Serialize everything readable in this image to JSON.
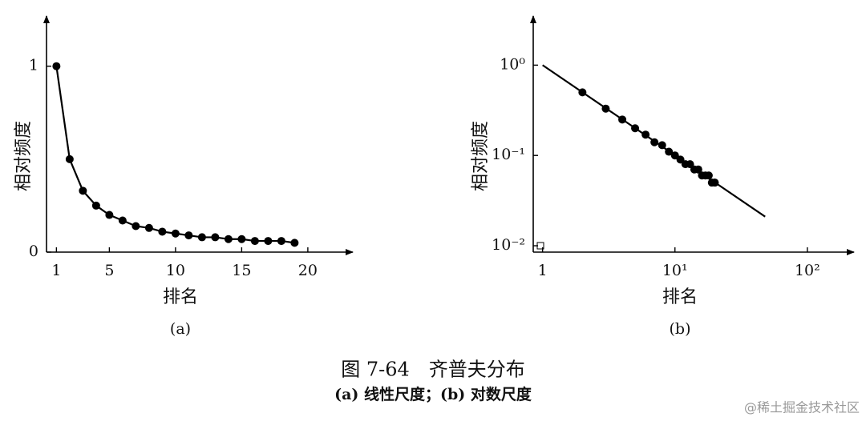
{
  "chart_data": [
    {
      "type": "line",
      "caption_label": "(a)",
      "xlabel": "排名",
      "ylabel": "相对频度",
      "xlim": [
        0.25,
        23.4
      ],
      "ylim": [
        0,
        1.27
      ],
      "xticks": [
        1,
        5,
        10,
        15,
        20
      ],
      "yticks": [
        0,
        1
      ],
      "series": [
        {
          "color": "#000000",
          "markers": true,
          "line": true,
          "x": [
            1,
            2,
            3,
            4,
            5,
            6,
            7,
            8,
            9,
            10,
            11,
            12,
            13,
            14,
            15,
            16,
            17,
            18,
            19
          ],
          "values": [
            1,
            0.5,
            0.33,
            0.25,
            0.2,
            0.17,
            0.14,
            0.13,
            0.11,
            0.1,
            0.09,
            0.08,
            0.08,
            0.07,
            0.07,
            0.06,
            0.06,
            0.06,
            0.05
          ]
        }
      ]
    },
    {
      "type": "line",
      "caption_label": "(b)",
      "xlabel": "排名",
      "ylabel": "相对频度",
      "xlog": true,
      "ylog": true,
      "xlim": [
        0.85,
        225
      ],
      "ylim": [
        0.0085,
        3.5
      ],
      "xticks": [
        1,
        {
          "value": 10,
          "label": "10¹"
        },
        {
          "value": 100,
          "label": "10²"
        }
      ],
      "yticks": [
        {
          "value": 1,
          "label": "10⁰"
        },
        {
          "value": 0.1,
          "label": "10⁻¹"
        },
        {
          "value": 0.01,
          "label": "10⁻²"
        }
      ],
      "series": [
        {
          "color": "#000000",
          "markers": false,
          "line": true,
          "x": [
            1,
            48
          ],
          "values": [
            1,
            0.021
          ]
        },
        {
          "color": "#000000",
          "markers": true,
          "line": false,
          "x": [
            2,
            3,
            4,
            5,
            6,
            7,
            8,
            9,
            10,
            11,
            12,
            13,
            14,
            15,
            16,
            17,
            18,
            19,
            20
          ],
          "values": [
            0.5,
            0.33,
            0.25,
            0.2,
            0.17,
            0.14,
            0.13,
            0.11,
            0.1,
            0.09,
            0.08,
            0.08,
            0.07,
            0.07,
            0.06,
            0.06,
            0.06,
            0.05,
            0.05
          ]
        }
      ]
    }
  ],
  "caption": "图 7-64　齐普夫分布",
  "subcaption": "(a) 线性尺度；(b) 对数尺度",
  "watermark": "@稀土掘金技术社区"
}
